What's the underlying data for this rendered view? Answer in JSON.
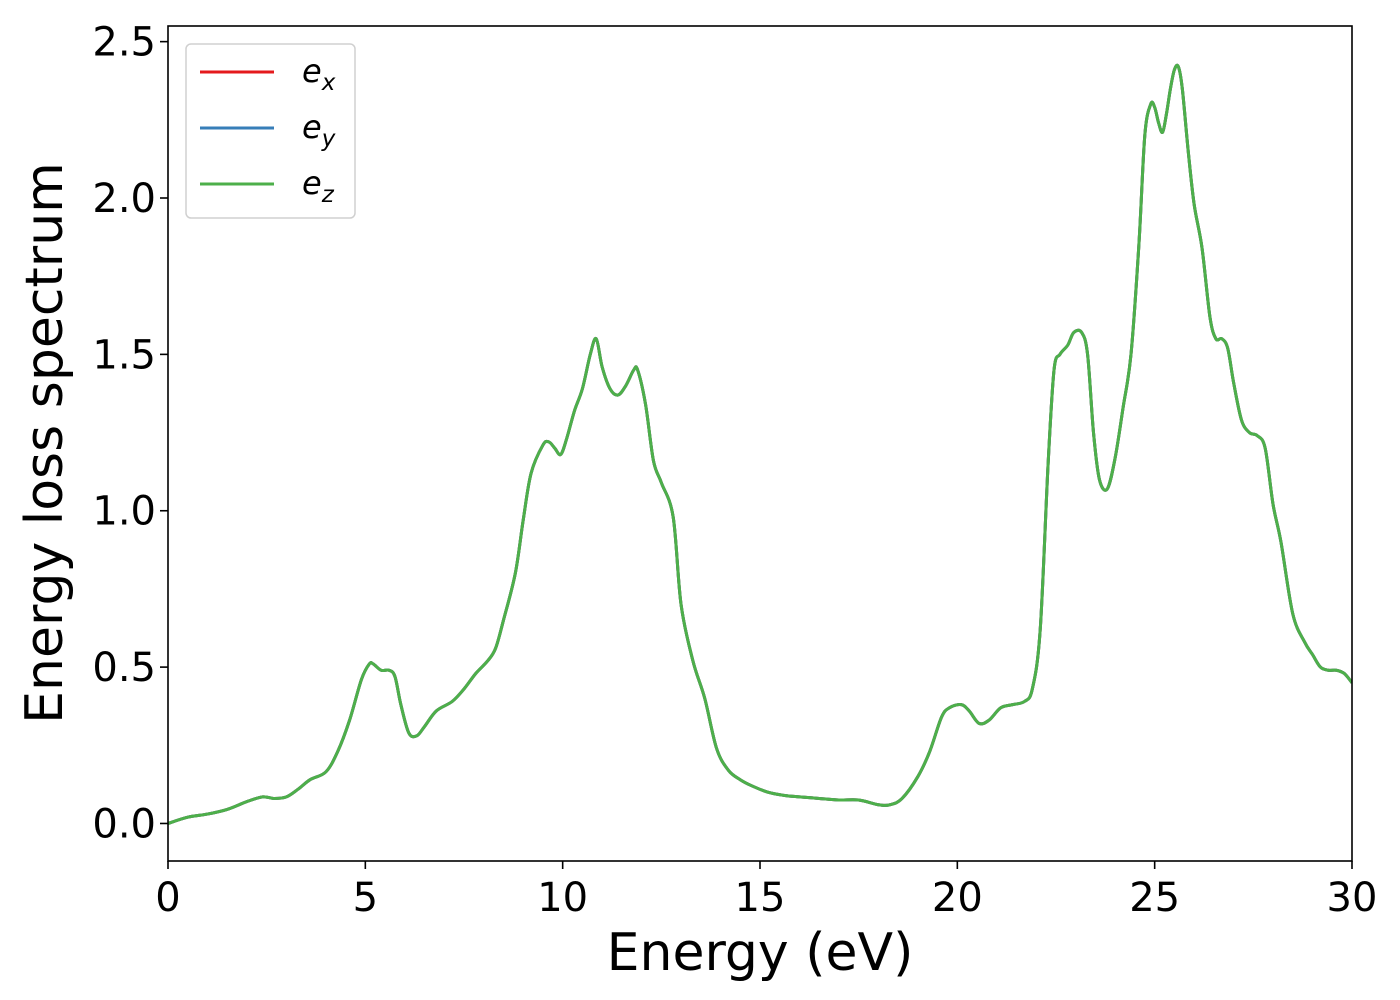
{
  "chart_data": {
    "type": "line",
    "xlabel": "Energy (eV)",
    "ylabel": "Energy loss spectrum",
    "xlim": [
      0,
      30
    ],
    "ylim": [
      -0.12,
      2.55
    ],
    "xticks": [
      0,
      5,
      10,
      15,
      20,
      25,
      30
    ],
    "yticks": [
      0.0,
      0.5,
      1.0,
      1.5,
      2.0,
      2.5
    ],
    "xtick_labels": [
      "0",
      "5",
      "10",
      "15",
      "20",
      "25",
      "30"
    ],
    "ytick_labels": [
      "0.0",
      "0.5",
      "1.0",
      "1.5",
      "2.0",
      "2.5"
    ],
    "grid": false,
    "legend_position": "top-left",
    "series": [
      {
        "name": "e_x",
        "legend_base": "e",
        "legend_sub": "x",
        "color": "#e41a1c"
      },
      {
        "name": "e_y",
        "legend_base": "e",
        "legend_sub": "y",
        "color": "#377eb8"
      },
      {
        "name": "e_z",
        "legend_base": "e",
        "legend_sub": "z",
        "color": "#4daf4a"
      }
    ],
    "x": [
      0,
      0.5,
      1.0,
      1.5,
      2.0,
      2.4,
      2.7,
      3.0,
      3.3,
      3.6,
      4.0,
      4.3,
      4.6,
      4.9,
      5.1,
      5.2,
      5.4,
      5.6,
      5.75,
      5.9,
      6.1,
      6.3,
      6.5,
      6.8,
      7.2,
      7.5,
      7.8,
      8.1,
      8.3,
      8.5,
      8.8,
      9.0,
      9.2,
      9.5,
      9.65,
      9.8,
      9.95,
      10.1,
      10.3,
      10.5,
      10.7,
      10.85,
      11.0,
      11.2,
      11.4,
      11.6,
      11.8,
      11.9,
      12.1,
      12.3,
      12.5,
      12.8,
      13.0,
      13.3,
      13.6,
      13.9,
      14.2,
      14.5,
      14.8,
      15.2,
      15.6,
      16.0,
      16.5,
      17.0,
      17.5,
      18.0,
      18.3,
      18.6,
      19.0,
      19.3,
      19.6,
      19.8,
      20.1,
      20.3,
      20.55,
      20.8,
      21.1,
      21.4,
      21.7,
      21.9,
      22.1,
      22.3,
      22.45,
      22.6,
      22.8,
      22.95,
      23.15,
      23.3,
      23.45,
      23.6,
      23.8,
      24.0,
      24.2,
      24.4,
      24.6,
      24.75,
      24.9,
      25.0,
      25.1,
      25.2,
      25.3,
      25.4,
      25.5,
      25.6,
      25.7,
      25.85,
      26.0,
      26.2,
      26.4,
      26.55,
      26.7,
      26.85,
      27.0,
      27.2,
      27.4,
      27.6,
      27.8,
      28.0,
      28.2,
      28.5,
      28.8,
      29.0,
      29.2,
      29.4,
      29.6,
      29.8,
      30.0
    ],
    "y": [
      0.0,
      0.02,
      0.03,
      0.045,
      0.07,
      0.085,
      0.08,
      0.085,
      0.11,
      0.14,
      0.165,
      0.23,
      0.33,
      0.46,
      0.51,
      0.51,
      0.49,
      0.49,
      0.47,
      0.38,
      0.29,
      0.28,
      0.31,
      0.36,
      0.39,
      0.43,
      0.48,
      0.52,
      0.56,
      0.65,
      0.8,
      0.97,
      1.12,
      1.21,
      1.22,
      1.2,
      1.18,
      1.23,
      1.32,
      1.39,
      1.5,
      1.55,
      1.46,
      1.39,
      1.37,
      1.4,
      1.45,
      1.45,
      1.34,
      1.16,
      1.09,
      0.98,
      0.7,
      0.52,
      0.4,
      0.24,
      0.17,
      0.14,
      0.12,
      0.1,
      0.09,
      0.085,
      0.08,
      0.075,
      0.075,
      0.06,
      0.06,
      0.08,
      0.15,
      0.23,
      0.34,
      0.37,
      0.38,
      0.36,
      0.32,
      0.33,
      0.37,
      0.38,
      0.39,
      0.43,
      0.62,
      1.15,
      1.45,
      1.5,
      1.53,
      1.57,
      1.57,
      1.5,
      1.25,
      1.1,
      1.07,
      1.17,
      1.33,
      1.5,
      1.85,
      2.2,
      2.3,
      2.29,
      2.24,
      2.21,
      2.27,
      2.35,
      2.41,
      2.42,
      2.35,
      2.15,
      1.98,
      1.84,
      1.62,
      1.55,
      1.55,
      1.52,
      1.41,
      1.29,
      1.25,
      1.24,
      1.2,
      1.02,
      0.9,
      0.67,
      0.58,
      0.54,
      0.5,
      0.49,
      0.49,
      0.48,
      0.45
    ]
  }
}
